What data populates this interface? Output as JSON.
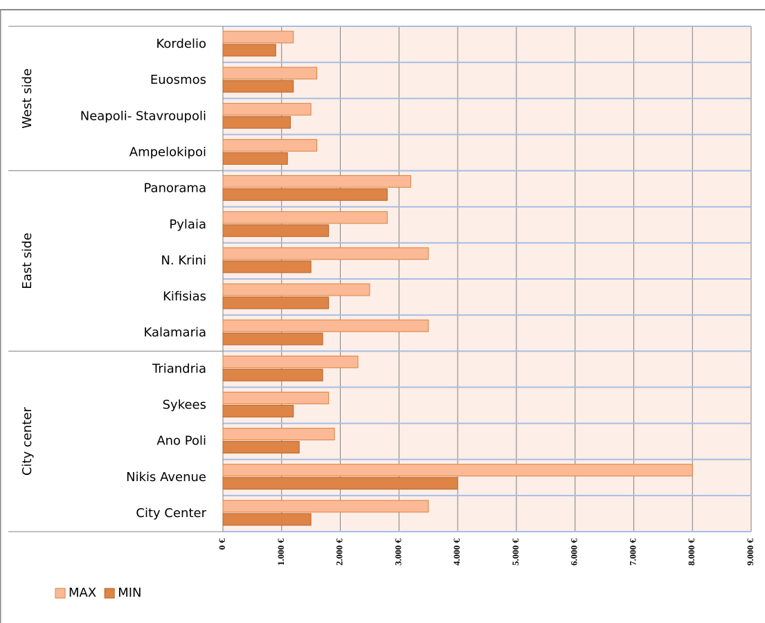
{
  "chart_data": {
    "type": "bar",
    "orientation": "horizontal",
    "groups": [
      {
        "name": "West side",
        "categories": [
          "Kordelio",
          "Euosmos",
          "Neapoli- Stavroupoli",
          "Ampelokipoi"
        ]
      },
      {
        "name": "East side",
        "categories": [
          "Panorama",
          "Pylaia",
          "N. Krini",
          "Kifisias",
          "Kalamaria"
        ]
      },
      {
        "name": "City center",
        "categories": [
          "Triandria",
          "Sykees",
          "Ano Poli",
          "Nikis Avenue",
          "City Center"
        ]
      }
    ],
    "series": [
      {
        "name": "MAX",
        "color": "#fbb995",
        "values": [
          1200,
          1600,
          1500,
          1600,
          3200,
          2800,
          3500,
          2500,
          3500,
          2300,
          1800,
          1900,
          8000,
          3500
        ]
      },
      {
        "name": "MIN",
        "color": "#dd8446",
        "values": [
          900,
          1200,
          1150,
          1100,
          2800,
          1800,
          1500,
          1800,
          1700,
          1700,
          1200,
          1300,
          4000,
          1500
        ]
      }
    ],
    "xlim": [
      0,
      9000
    ],
    "xticks": [
      {
        "value": 0,
        "label": "0 €"
      },
      {
        "value": 1000,
        "label": "1.000 €"
      },
      {
        "value": 2000,
        "label": "2.000 €"
      },
      {
        "value": 3000,
        "label": "3.000 €"
      },
      {
        "value": 4000,
        "label": "4.000 €"
      },
      {
        "value": 5000,
        "label": "5.000 €"
      },
      {
        "value": 6000,
        "label": "6.000 €"
      },
      {
        "value": 7000,
        "label": "7.000 €"
      },
      {
        "value": 8000,
        "label": "8.000 €"
      },
      {
        "value": 9000,
        "label": "9.000 €"
      }
    ],
    "grid": true,
    "legend": "bottom-left"
  }
}
